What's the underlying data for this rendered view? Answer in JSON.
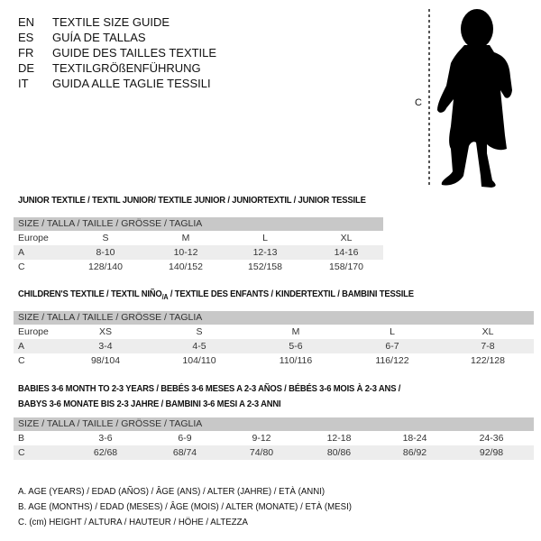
{
  "languages": [
    {
      "code": "EN",
      "text": "TEXTILE SIZE GUIDE"
    },
    {
      "code": "ES",
      "text": "GUÍA DE TALLAS"
    },
    {
      "code": "FR",
      "text": "GUIDE DES TAILLES TEXTILE"
    },
    {
      "code": "DE",
      "text": "TEXTILGRÖßENFÜHRUNG"
    },
    {
      "code": "IT",
      "text": "GUIDA ALLE TAGLIE TESSILI"
    }
  ],
  "figure": {
    "label": "C",
    "icon": "child-silhouette"
  },
  "junior": {
    "title": "JUNIOR TEXTILE / TEXTIL JUNIOR/ TEXTILE JUNIOR / JUNIORTEXTIL / JUNIOR TESSILE",
    "header": "SIZE / TALLA / TAILLE / GRÖSSE / TAGLIA",
    "rows": [
      {
        "label": "Europe",
        "cells": [
          "S",
          "M",
          "L",
          "XL"
        ]
      },
      {
        "label": "A",
        "cells": [
          "8-10",
          "10-12",
          "12-13",
          "14-16"
        ]
      },
      {
        "label": "C",
        "cells": [
          "128/140",
          "140/152",
          "152/158",
          "158/170"
        ]
      }
    ]
  },
  "children": {
    "title_a": "CHILDREN'S TEXTILE / TEXTIL NIÑO",
    "title_sub": "/A",
    "title_b": " / TEXTILE DES ENFANTS / KINDERTEXTIL / BAMBINI TESSILE",
    "header": "SIZE / TALLA / TAILLE / GRÖSSE / TAGLIA",
    "rows": [
      {
        "label": "Europe",
        "cells": [
          "XS",
          "S",
          "M",
          "L",
          "XL"
        ]
      },
      {
        "label": "A",
        "cells": [
          "3-4",
          "4-5",
          "5-6",
          "6-7",
          "7-8"
        ]
      },
      {
        "label": "C",
        "cells": [
          "98/104",
          "104/110",
          "110/116",
          "116/122",
          "122/128"
        ]
      }
    ]
  },
  "babies": {
    "title_line1": "BABIES 3-6 MONTH TO 2-3 YEARS / BEBÉS 3-6 MESES A 2-3 AÑOS / BÉBÉS 3-6 MOIS À 2-3 ANS /",
    "title_line2": "BABYS 3-6 MONATE BIS 2-3 JAHRE / BAMBINI 3-6 MESI A 2-3 ANNI",
    "header": "SIZE / TALLA / TAILLE / GRÖSSE / TAGLIA",
    "rows": [
      {
        "label": "B",
        "cells": [
          "3-6",
          "6-9",
          "9-12",
          "12-18",
          "18-24",
          "24-36"
        ]
      },
      {
        "label": "C",
        "cells": [
          "62/68",
          "68/74",
          "74/80",
          "80/86",
          "86/92",
          "92/98"
        ]
      }
    ]
  },
  "legend": [
    "A. AGE (YEARS) / EDAD (AÑOS) / ÂGE (ANS) / ALTER (JAHRE) / ETÀ (ANNI)",
    "B. AGE (MONTHS) / EDAD (MESES) / ÂGE (MOIS) / ALTER (MONATE) / ETÀ (MESI)",
    "C. (cm) HEIGHT / ALTURA / HAUTEUR / HÖHE / ALTEZZA"
  ]
}
